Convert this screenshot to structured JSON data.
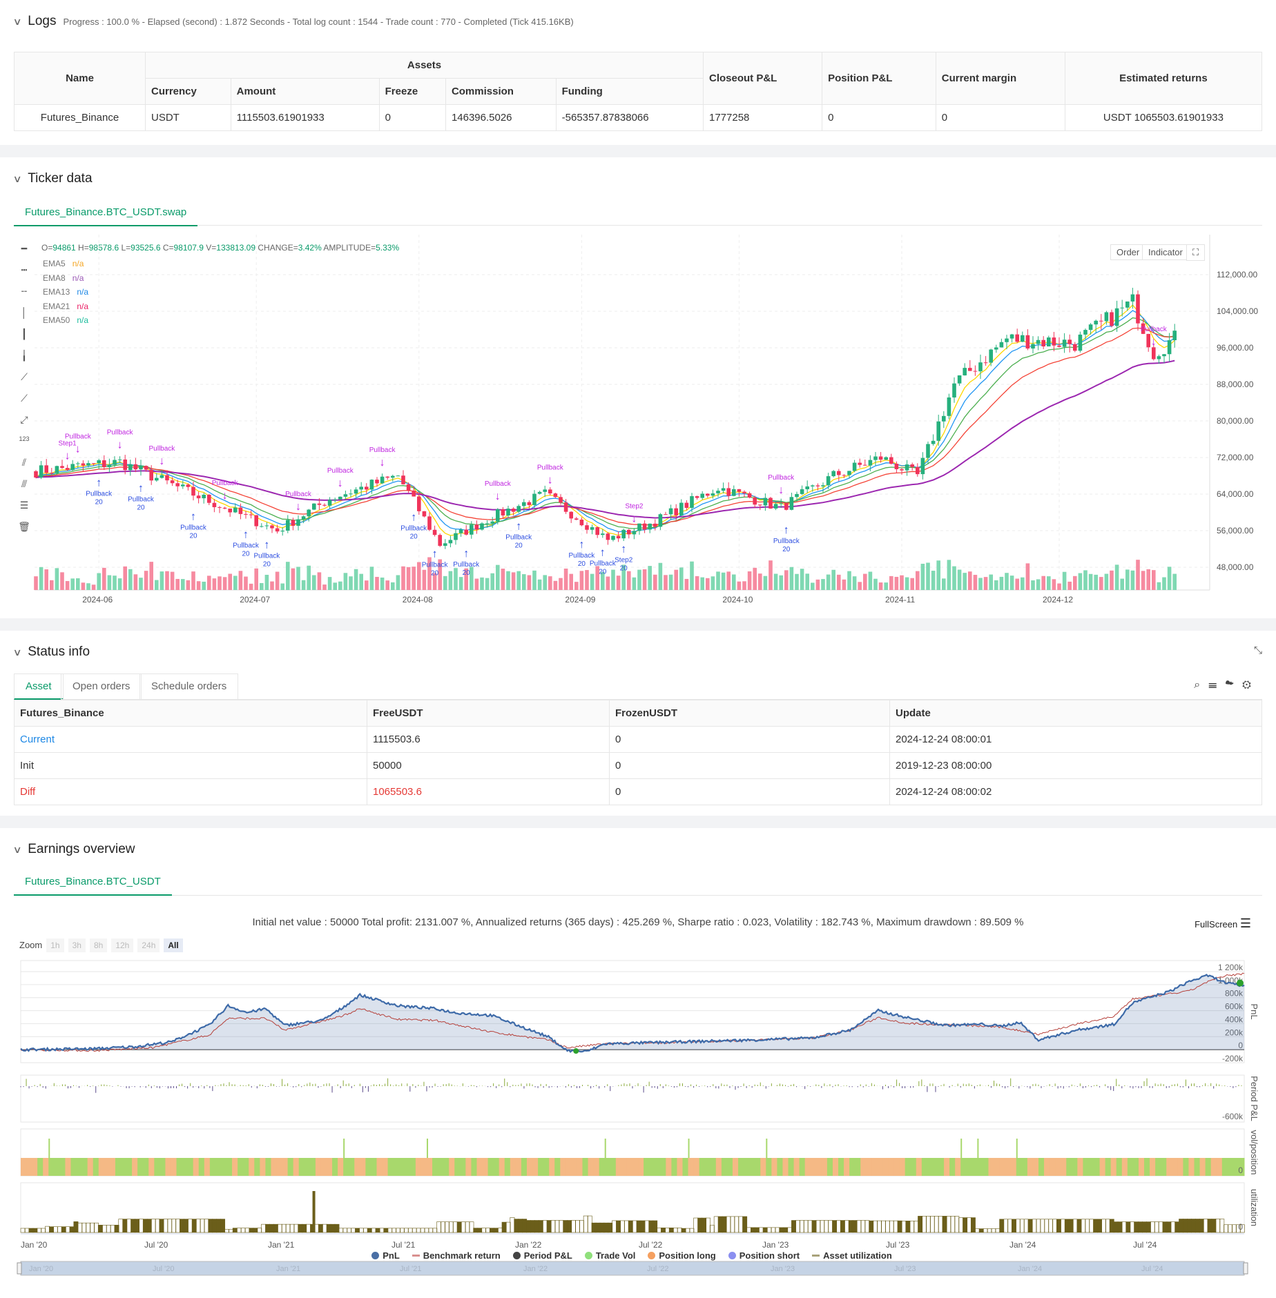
{
  "logs": {
    "title": "Logs",
    "summary": "Progress : 100.0 % - Elapsed (second) : 1.872  Seconds - Total log count : 1544 - Trade count : 770 - Completed (Tick 415.16KB)",
    "headers": {
      "name": "Name",
      "assets": "Assets",
      "currency": "Currency",
      "amount": "Amount",
      "freeze": "Freeze",
      "commission": "Commission",
      "funding": "Funding",
      "closeout": "Closeout P&L",
      "position": "Position P&L",
      "margin": "Current margin",
      "est": "Estimated returns"
    },
    "row": {
      "name": "Futures_Binance",
      "currency": "USDT",
      "amount": "1115503.61901933",
      "freeze": "0",
      "commission": "146396.5026",
      "funding": "-565357.87838066",
      "closeout": "1777258",
      "position": "0",
      "margin": "0",
      "est": "USDT 1065503.61901933"
    }
  },
  "ticker": {
    "title": "Ticker data",
    "tab": "Futures_Binance.BTC_USDT.swap",
    "ohlc": {
      "o_l": "O=",
      "o": "94861",
      "h_l": " H=",
      "h": "98578.6",
      "l_l": " L=",
      "l": "93525.6",
      "c_l": " C=",
      "c": "98107.9",
      "v_l": " V=",
      "v": "133813.09",
      "ch_l": " CHANGE=",
      "ch": "3.42%",
      "am_l": " AMPLITUDE=",
      "am": "5.33%"
    },
    "emas": [
      {
        "name": "EMA5",
        "val": "n/a",
        "color": "#f5a623",
        "period": 5
      },
      {
        "name": "EMA8",
        "val": "n/a",
        "color": "#9b59b6",
        "period": 8
      },
      {
        "name": "EMA13",
        "val": "n/a",
        "color": "#1e88e5",
        "period": 13
      },
      {
        "name": "EMA21",
        "val": "n/a",
        "color": "#e91e63",
        "period": 21
      },
      {
        "name": "EMA50",
        "val": "n/a",
        "color": "#1abc9c",
        "period": 50
      }
    ],
    "order_btn": "Order",
    "indicator_btn": "Indicator",
    "yticks": [
      {
        "v": 112000,
        "t": "112,000.00"
      },
      {
        "v": 104000,
        "t": "104,000.00"
      },
      {
        "v": 96000,
        "t": "96,000.00"
      },
      {
        "v": 88000,
        "t": "88,000.00"
      },
      {
        "v": 80000,
        "t": "80,000.00"
      },
      {
        "v": 72000,
        "t": "72,000.00"
      },
      {
        "v": 64000,
        "t": "64,000.00"
      },
      {
        "v": 56000,
        "t": "56,000.00"
      },
      {
        "v": 48000,
        "t": "48,000.00"
      }
    ],
    "xticks": [
      {
        "d": 12,
        "t": "2024-06"
      },
      {
        "d": 42,
        "t": "2024-07"
      },
      {
        "d": 73,
        "t": "2024-08"
      },
      {
        "d": 104,
        "t": "2024-09"
      },
      {
        "d": 134,
        "t": "2024-10"
      },
      {
        "d": 165,
        "t": "2024-11"
      },
      {
        "d": 195,
        "t": "2024-12"
      }
    ],
    "price_keys": [
      [
        0,
        69000
      ],
      [
        16,
        71000
      ],
      [
        26,
        66000
      ],
      [
        36,
        61000
      ],
      [
        46,
        56000
      ],
      [
        56,
        63000
      ],
      [
        69,
        68000
      ],
      [
        77,
        53000
      ],
      [
        87,
        59000
      ],
      [
        97,
        64000
      ],
      [
        109,
        54000
      ],
      [
        118,
        58000
      ],
      [
        130,
        65500
      ],
      [
        142,
        61000
      ],
      [
        152,
        68000
      ],
      [
        161,
        72000
      ],
      [
        168,
        68000
      ],
      [
        175,
        88000
      ],
      [
        185,
        98000
      ],
      [
        198,
        97000
      ],
      [
        209,
        106000
      ],
      [
        213,
        95000
      ],
      [
        217,
        98000
      ]
    ],
    "markers": [
      {
        "d": 6,
        "t": "short",
        "label": "Step1"
      },
      {
        "d": 8,
        "t": "short",
        "label": "Pullback"
      },
      {
        "d": 12,
        "t": "long",
        "label": "Pullback"
      },
      {
        "d": 16,
        "t": "short",
        "label": "Pullback"
      },
      {
        "d": 20,
        "t": "long",
        "label": "Pullback"
      },
      {
        "d": 24,
        "t": "short",
        "label": "Pullback"
      },
      {
        "d": 30,
        "t": "long",
        "label": "Pullback"
      },
      {
        "d": 36,
        "t": "short",
        "label": "Pullback"
      },
      {
        "d": 40,
        "t": "long",
        "label": "Pullback"
      },
      {
        "d": 44,
        "t": "long",
        "label": "Pullback"
      },
      {
        "d": 50,
        "t": "short",
        "label": "Pullback"
      },
      {
        "d": 58,
        "t": "short",
        "label": "Pullback"
      },
      {
        "d": 66,
        "t": "short",
        "label": "Pullback"
      },
      {
        "d": 72,
        "t": "long",
        "label": "Pullback"
      },
      {
        "d": 76,
        "t": "long",
        "label": "Pullback"
      },
      {
        "d": 82,
        "t": "long",
        "label": "Pullback"
      },
      {
        "d": 88,
        "t": "short",
        "label": "Pullback"
      },
      {
        "d": 92,
        "t": "long",
        "label": "Pullback"
      },
      {
        "d": 98,
        "t": "short",
        "label": "Pullback"
      },
      {
        "d": 104,
        "t": "long",
        "label": "Pullback"
      },
      {
        "d": 108,
        "t": "long",
        "label": "Pullback"
      },
      {
        "d": 112,
        "t": "long",
        "label": "Step2"
      },
      {
        "d": 114,
        "t": "short",
        "label": "Step2"
      },
      {
        "d": 142,
        "t": "short",
        "label": "Pullback"
      },
      {
        "d": 143,
        "t": "long",
        "label": "Pullback"
      },
      {
        "d": 213,
        "t": "short",
        "label": "Pullback"
      }
    ],
    "marker_sub": "20"
  },
  "status": {
    "title": "Status info",
    "tabs": [
      "Asset",
      "Open orders",
      "Schedule orders"
    ],
    "headers": [
      "Futures_Binance",
      "FreeUSDT",
      "FrozenUSDT",
      "Update"
    ],
    "rows": [
      [
        "Current",
        "1115503.6",
        "0",
        "2024-12-24 08:00:01"
      ],
      [
        "Init",
        "50000",
        "0",
        "2019-12-23 08:00:00"
      ],
      [
        "Diff",
        "1065503.6",
        "0",
        "2024-12-24 08:00:02"
      ]
    ]
  },
  "earnings": {
    "title": "Earnings overview",
    "tab": "Futures_Binance.BTC_USDT",
    "summary": "Initial net value : 50000 Total profit: 2131.007 %, Annualized returns (365 days) : 425.269 %, Sharpe ratio : 0.023, Volatility : 182.743 %, Maximum drawdown : 89.509 %",
    "fullscreen": "FullScreen",
    "zoom_label": "Zoom",
    "zoom_opts": [
      "1h",
      "3h",
      "8h",
      "12h",
      "24h",
      "All"
    ],
    "pnl_ticks": [
      "1 200k",
      "1 000k",
      "800k",
      "600k",
      "400k",
      "200k",
      "0",
      "-200k"
    ],
    "period_tick": "-600k",
    "zero": "0",
    "axis_titles": [
      "PnL",
      "Period P&L",
      "vol/position",
      "utilization"
    ],
    "xticks": [
      "Jan '20",
      "Jul '20",
      "Jan '21",
      "Jul '21",
      "Jan '22",
      "Jul '22",
      "Jan '23",
      "Jul '23",
      "Jan '24",
      "Jul '24"
    ],
    "legend": [
      {
        "t": "PnL",
        "c": "#4a6fa5"
      },
      {
        "t": "Benchmark return",
        "c": "#d9908f"
      },
      {
        "t": "Period P&L",
        "c": "#444"
      },
      {
        "t": "Trade Vol",
        "c": "#90e07c"
      },
      {
        "t": "Position long",
        "c": "#f5a060"
      },
      {
        "t": "Position short",
        "c": "#8b8ff0"
      },
      {
        "t": "Asset utilization",
        "c": "#a8a27a"
      }
    ],
    "pnl_keys": [
      [
        0,
        0
      ],
      [
        8,
        10
      ],
      [
        12,
        30
      ],
      [
        16,
        80
      ],
      [
        20,
        250
      ],
      [
        22,
        450
      ],
      [
        24,
        380
      ],
      [
        26,
        420
      ],
      [
        28,
        250
      ],
      [
        32,
        300
      ],
      [
        34,
        420
      ],
      [
        36,
        560
      ],
      [
        40,
        450
      ],
      [
        44,
        420
      ],
      [
        46,
        380
      ],
      [
        50,
        350
      ],
      [
        56,
        130
      ],
      [
        58,
        -10
      ],
      [
        60,
        -20
      ],
      [
        62,
        60
      ],
      [
        70,
        80
      ],
      [
        78,
        100
      ],
      [
        84,
        120
      ],
      [
        88,
        200
      ],
      [
        91,
        400
      ],
      [
        94,
        330
      ],
      [
        98,
        250
      ],
      [
        102,
        260
      ],
      [
        104,
        240
      ],
      [
        106,
        280
      ],
      [
        108,
        100
      ],
      [
        112,
        200
      ],
      [
        116,
        260
      ],
      [
        118,
        480
      ],
      [
        122,
        600
      ],
      [
        124,
        700
      ],
      [
        126,
        760
      ],
      [
        128,
        680
      ],
      [
        130,
        650
      ]
    ],
    "bench_keys": [
      [
        0,
        0
      ],
      [
        8,
        -10
      ],
      [
        14,
        20
      ],
      [
        20,
        150
      ],
      [
        22,
        320
      ],
      [
        26,
        320
      ],
      [
        28,
        200
      ],
      [
        34,
        340
      ],
      [
        36,
        420
      ],
      [
        40,
        310
      ],
      [
        44,
        300
      ],
      [
        50,
        180
      ],
      [
        56,
        100
      ],
      [
        58,
        20
      ],
      [
        62,
        60
      ],
      [
        72,
        80
      ],
      [
        84,
        120
      ],
      [
        88,
        200
      ],
      [
        91,
        330
      ],
      [
        94,
        270
      ],
      [
        100,
        250
      ],
      [
        104,
        230
      ],
      [
        108,
        160
      ],
      [
        112,
        260
      ],
      [
        116,
        340
      ],
      [
        118,
        520
      ],
      [
        124,
        600
      ],
      [
        126,
        700
      ],
      [
        128,
        760
      ],
      [
        130,
        780
      ]
    ]
  }
}
